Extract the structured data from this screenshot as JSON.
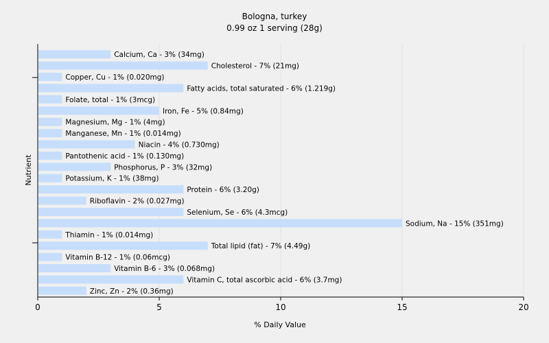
{
  "chart_data": {
    "type": "bar",
    "orientation": "horizontal",
    "title": "Bologna, turkey",
    "subtitle": "0.99 oz 1 serving (28g)",
    "xlabel": "% Daily Value",
    "ylabel": "Nutrient",
    "xlim": [
      0,
      20
    ],
    "xticks": [
      0,
      5,
      10,
      15,
      20
    ],
    "grid": true,
    "bar_color": "#c6defc",
    "categories": [
      "Calcium, Ca",
      "Cholesterol",
      "Copper, Cu",
      "Fatty acids, total saturated",
      "Folate, total",
      "Iron, Fe",
      "Magnesium, Mg",
      "Manganese, Mn",
      "Niacin",
      "Pantothenic acid",
      "Phosphorus, P",
      "Potassium, K",
      "Protein",
      "Riboflavin",
      "Selenium, Se",
      "Sodium, Na",
      "Thiamin",
      "Total lipid (fat)",
      "Vitamin B-12",
      "Vitamin B-6",
      "Vitamin C, total ascorbic acid",
      "Zinc, Zn"
    ],
    "values": [
      3,
      7,
      1,
      6,
      1,
      5,
      1,
      1,
      4,
      1,
      3,
      1,
      6,
      2,
      6,
      15,
      1,
      7,
      1,
      3,
      6,
      2
    ],
    "labels": [
      "Calcium, Ca - 3% (34mg)",
      "Cholesterol - 7% (21mg)",
      "Copper, Cu - 1% (0.020mg)",
      "Fatty acids, total saturated - 6% (1.219g)",
      "Folate, total - 1% (3mcg)",
      "Iron, Fe - 5% (0.84mg)",
      "Magnesium, Mg - 1% (4mg)",
      "Manganese, Mn - 1% (0.014mg)",
      "Niacin - 4% (0.730mg)",
      "Pantothenic acid - 1% (0.130mg)",
      "Phosphorus, P - 3% (32mg)",
      "Potassium, K - 1% (38mg)",
      "Protein - 6% (3.20g)",
      "Riboflavin - 2% (0.027mg)",
      "Selenium, Se - 6% (4.3mcg)",
      "Sodium, Na - 15% (351mg)",
      "Thiamin - 1% (0.014mg)",
      "Total lipid (fat) - 7% (4.49g)",
      "Vitamin B-12 - 1% (0.06mcg)",
      "Vitamin B-6 - 3% (0.068mg)",
      "Vitamin C, total ascorbic acid - 6% (3.7mg)",
      "Zinc, Zn - 2% (0.36mg)"
    ]
  }
}
